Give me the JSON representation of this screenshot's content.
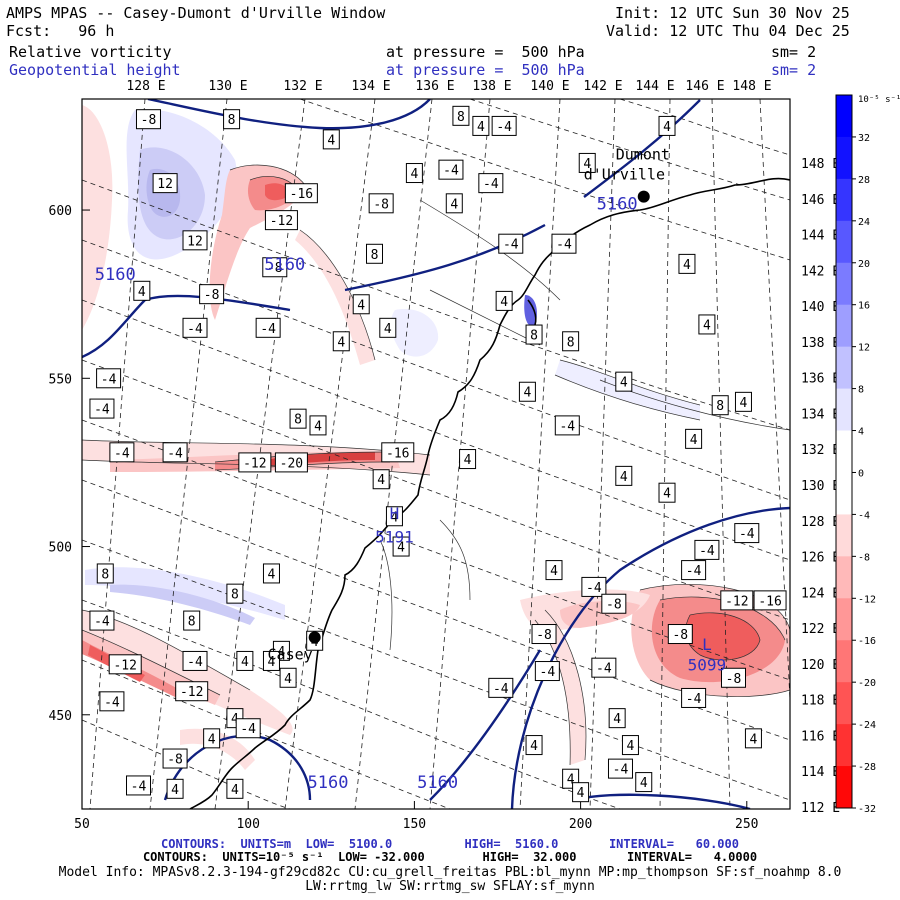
{
  "header": {
    "title": "AMPS MPAS -- Casey-Dumont d'Urville Window",
    "forecast": "Fcst:   96 h",
    "init": "Init: 12 UTC Sun 30 Nov 25",
    "valid": "Valid: 12 UTC Thu 04 Dec 25",
    "field1_name": "Relative vorticity",
    "field1_level": "at pressure =  500 hPa",
    "field1_sm": "sm= 2",
    "field2_name": "Geopotential height",
    "field2_level": "at pressure =  500 hPa",
    "field2_sm": "sm= 2"
  },
  "footer": {
    "contour1": "CONTOURS:  UNITS=m  LOW=  5100.0          HIGH=  5160.0       INTERVAL=   60.000",
    "contour2": "CONTOURS:  UNITS=10⁻⁵ s⁻¹  LOW= -32.000        HIGH=  32.000       INTERVAL=   4.0000",
    "model_info1": "Model Info: MPASv8.2.3-194-gf29cd82c CU:cu_grell_freitas PBL:bl_mynn MP:mp_thompson SF:sf_noahmp 8.0",
    "model_info2": "LW:rrtmg_lw SW:rrtmg_sw SFLAY:sf_mynn"
  },
  "colors": {
    "height_contour": "#102080",
    "coast": "#000000",
    "label_blue": "#3030c0"
  },
  "chart_data": {
    "type": "contour-map",
    "title": "AMPS MPAS -- Casey-Dumont d'Urville Window",
    "xlim": [
      50,
      263
    ],
    "ylim": [
      422,
      633
    ],
    "x_ticks": [
      50,
      100,
      150,
      200,
      250
    ],
    "y_ticks": [
      450,
      500,
      550,
      600
    ],
    "top_lon_labels": [
      "128 E",
      "130 E",
      "132 E",
      "134 E",
      "136 E",
      "138 E",
      "140 E",
      "142 E",
      "144 E",
      "146 E",
      "148 E"
    ],
    "right_lat_labels": [
      "148 E",
      "146 E",
      "144 E",
      "142 E",
      "140 E",
      "138 E",
      "136 E",
      "134 E",
      "132 E",
      "130 E",
      "128 E",
      "126 E",
      "124 E",
      "122 E",
      "120 E",
      "118 E",
      "116 E",
      "114 E",
      "112 E"
    ],
    "colorbar": {
      "unit_label": "10⁻⁵ s⁻¹",
      "ticks": [
        32,
        28,
        24,
        20,
        16,
        12,
        8,
        4,
        0,
        -4,
        -8,
        -12,
        -16,
        -20,
        -24,
        -28,
        -32
      ],
      "range": [
        -32,
        32
      ],
      "interval": 4
    },
    "stations": [
      {
        "name": "Casey",
        "x": 120,
        "y": 473
      },
      {
        "name": "Dumont d'Urville",
        "x": 219,
        "y": 604
      }
    ],
    "height_contour_labels": [
      {
        "text": "5160",
        "x": 111,
        "y": 584
      },
      {
        "text": "5160",
        "x": 60,
        "y": 581
      },
      {
        "text": "5160",
        "x": 211,
        "y": 602
      },
      {
        "text": "5160",
        "x": 124,
        "y": 430
      },
      {
        "text": "5160",
        "x": 157,
        "y": 430
      }
    ],
    "extrema": [
      {
        "text": "H",
        "x": 144,
        "y": 510
      },
      {
        "text": "5191",
        "x": 144,
        "y": 503
      },
      {
        "text": "L",
        "x": 238,
        "y": 471
      },
      {
        "text": "5099",
        "x": 238,
        "y": 465
      }
    ],
    "vorticity_labels": [
      {
        "v": "-8",
        "x": 70,
        "y": 627
      },
      {
        "v": "8",
        "x": 95,
        "y": 627
      },
      {
        "v": "8",
        "x": 164,
        "y": 628
      },
      {
        "v": "4",
        "x": 170,
        "y": 625
      },
      {
        "v": "-4",
        "x": 177,
        "y": 625
      },
      {
        "v": "4",
        "x": 226,
        "y": 625
      },
      {
        "v": "4",
        "x": 125,
        "y": 621
      },
      {
        "v": "4",
        "x": 150,
        "y": 611
      },
      {
        "v": "-4",
        "x": 161,
        "y": 612
      },
      {
        "v": "4",
        "x": 202,
        "y": 614
      },
      {
        "v": "-4",
        "x": 173,
        "y": 608
      },
      {
        "v": "-16",
        "x": 116,
        "y": 605
      },
      {
        "v": "12",
        "x": 75,
        "y": 608
      },
      {
        "v": "-8",
        "x": 140,
        "y": 602
      },
      {
        "v": "4",
        "x": 162,
        "y": 602
      },
      {
        "v": "-12",
        "x": 110,
        "y": 597
      },
      {
        "v": "12",
        "x": 84,
        "y": 591
      },
      {
        "v": "-4",
        "x": 179,
        "y": 590
      },
      {
        "v": "-4",
        "x": 195,
        "y": 590
      },
      {
        "v": "8",
        "x": 138,
        "y": 587
      },
      {
        "v": "-8",
        "x": 108,
        "y": 583
      },
      {
        "v": "4",
        "x": 232,
        "y": 584
      },
      {
        "v": "4",
        "x": 68,
        "y": 576
      },
      {
        "v": "-8",
        "x": 89,
        "y": 575
      },
      {
        "v": "4",
        "x": 134,
        "y": 572
      },
      {
        "v": "4",
        "x": 177,
        "y": 573
      },
      {
        "v": "-4",
        "x": 84,
        "y": 565
      },
      {
        "v": "-4",
        "x": 106,
        "y": 565
      },
      {
        "v": "4",
        "x": 142,
        "y": 565
      },
      {
        "v": "8",
        "x": 186,
        "y": 563
      },
      {
        "v": "4",
        "x": 238,
        "y": 566
      },
      {
        "v": "4",
        "x": 128,
        "y": 561
      },
      {
        "v": "8",
        "x": 197,
        "y": 561
      },
      {
        "v": "-4",
        "x": 58,
        "y": 550
      },
      {
        "v": "4",
        "x": 213,
        "y": 549
      },
      {
        "v": "4",
        "x": 184,
        "y": 546
      },
      {
        "v": "4",
        "x": 249,
        "y": 543
      },
      {
        "v": "8",
        "x": 242,
        "y": 542
      },
      {
        "v": "-4",
        "x": 56,
        "y": 541
      },
      {
        "v": "8",
        "x": 115,
        "y": 538
      },
      {
        "v": "4",
        "x": 121,
        "y": 536
      },
      {
        "v": "4",
        "x": 234,
        "y": 532
      },
      {
        "v": "-4",
        "x": 196,
        "y": 536
      },
      {
        "v": "-4",
        "x": 62,
        "y": 528
      },
      {
        "v": "-4",
        "x": 78,
        "y": 528
      },
      {
        "v": "-12",
        "x": 102,
        "y": 525
      },
      {
        "v": "-20",
        "x": 113,
        "y": 525
      },
      {
        "v": "-16",
        "x": 145,
        "y": 528
      },
      {
        "v": "4",
        "x": 166,
        "y": 526
      },
      {
        "v": "4",
        "x": 213,
        "y": 521
      },
      {
        "v": "4",
        "x": 140,
        "y": 520
      },
      {
        "v": "4",
        "x": 226,
        "y": 516
      },
      {
        "v": "4",
        "x": 144,
        "y": 509
      },
      {
        "v": "-4",
        "x": 250,
        "y": 504
      },
      {
        "v": "4",
        "x": 146,
        "y": 500
      },
      {
        "v": "-4",
        "x": 238,
        "y": 499
      },
      {
        "v": "8",
        "x": 57,
        "y": 492
      },
      {
        "v": "4",
        "x": 107,
        "y": 492
      },
      {
        "v": "4",
        "x": 192,
        "y": 493
      },
      {
        "v": "-4",
        "x": 234,
        "y": 493
      },
      {
        "v": "-4",
        "x": 204,
        "y": 488
      },
      {
        "v": "8",
        "x": 96,
        "y": 486
      },
      {
        "v": "-12",
        "x": 247,
        "y": 484
      },
      {
        "v": "-16",
        "x": 257,
        "y": 484
      },
      {
        "v": "-8",
        "x": 210,
        "y": 483
      },
      {
        "v": "-4",
        "x": 56,
        "y": 478
      },
      {
        "v": "8",
        "x": 83,
        "y": 478
      },
      {
        "v": "4",
        "x": 120,
        "y": 472
      },
      {
        "v": "4",
        "x": 110,
        "y": 469
      },
      {
        "v": "-8",
        "x": 230,
        "y": 474
      },
      {
        "v": "-8",
        "x": 189,
        "y": 474
      },
      {
        "v": "-4",
        "x": 84,
        "y": 466
      },
      {
        "v": "4",
        "x": 107,
        "y": 466
      },
      {
        "v": "4",
        "x": 99,
        "y": 466
      },
      {
        "v": "-12",
        "x": 63,
        "y": 465
      },
      {
        "v": "-4",
        "x": 190,
        "y": 463
      },
      {
        "v": "-4",
        "x": 207,
        "y": 464
      },
      {
        "v": "4",
        "x": 112,
        "y": 461
      },
      {
        "v": "-8",
        "x": 246,
        "y": 461
      },
      {
        "v": "-12",
        "x": 83,
        "y": 457
      },
      {
        "v": "-4",
        "x": 59,
        "y": 454
      },
      {
        "v": "-4",
        "x": 234,
        "y": 455
      },
      {
        "v": "-4",
        "x": 176,
        "y": 458
      },
      {
        "v": "4",
        "x": 96,
        "y": 449
      },
      {
        "v": "4",
        "x": 211,
        "y": 449
      },
      {
        "v": "-4",
        "x": 100,
        "y": 446
      },
      {
        "v": "4",
        "x": 89,
        "y": 443
      },
      {
        "v": "4",
        "x": 252,
        "y": 443
      },
      {
        "v": "4",
        "x": 215,
        "y": 441
      },
      {
        "v": "4",
        "x": 186,
        "y": 441
      },
      {
        "v": "-8",
        "x": 78,
        "y": 437
      },
      {
        "v": "-4",
        "x": 212,
        "y": 434
      },
      {
        "v": "-4",
        "x": 67,
        "y": 429
      },
      {
        "v": "4",
        "x": 219,
        "y": 430
      },
      {
        "v": "4",
        "x": 78,
        "y": 428
      },
      {
        "v": "4",
        "x": 96,
        "y": 428
      },
      {
        "v": "4",
        "x": 197,
        "y": 431
      },
      {
        "v": "4",
        "x": 200,
        "y": 427
      }
    ]
  }
}
